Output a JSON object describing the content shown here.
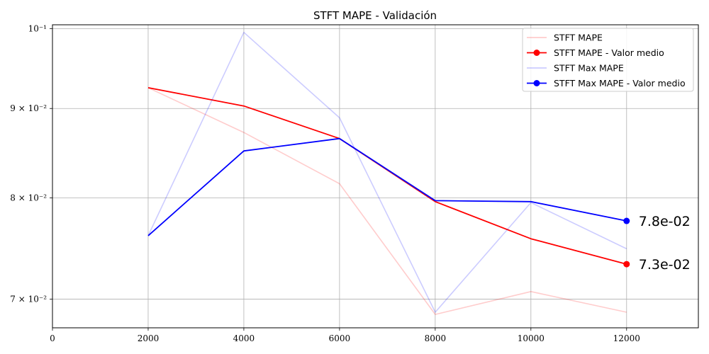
{
  "chart_data": {
    "type": "line",
    "title": "STFT MAPE - Validación",
    "xlabel": "",
    "ylabel": "",
    "x_scale": "linear",
    "y_scale": "log",
    "xlim": [
      0,
      13500
    ],
    "ylim": [
      0.0674,
      0.1005
    ],
    "x_ticks": [
      0,
      2000,
      4000,
      6000,
      8000,
      10000,
      12000
    ],
    "x_tick_labels": [
      "0",
      "2000",
      "4000",
      "6000",
      "8000",
      "10000",
      "12000"
    ],
    "y_ticks": [
      0.07,
      0.08,
      0.09,
      0.1
    ],
    "y_tick_labels": [
      "7 × 10⁻²",
      "8 × 10⁻²",
      "9 × 10⁻²",
      "10⁻¹"
    ],
    "grid": true,
    "legend_position": "upper right",
    "x": [
      2000,
      4000,
      6000,
      8000,
      10000,
      12000
    ],
    "series": [
      {
        "name": "STFT MAPE",
        "values": [
          0.0925,
          0.0872,
          0.0815,
          0.0686,
          0.0707,
          0.0688
        ],
        "color": "#ff0000",
        "opacity": 0.2,
        "marker": false
      },
      {
        "name": "STFT MAPE - Valor medio",
        "values": [
          0.0925,
          0.0903,
          0.0865,
          0.0796,
          0.0758,
          0.0733
        ],
        "color": "#ff0000",
        "opacity": 1,
        "marker": true
      },
      {
        "name": "STFT Max MAPE",
        "values": [
          0.0761,
          0.0995,
          0.0889,
          0.0688,
          0.0795,
          0.0748
        ],
        "color": "#0000ff",
        "opacity": 0.2,
        "marker": false
      },
      {
        "name": "STFT Max MAPE - Valor medio",
        "values": [
          0.0761,
          0.0851,
          0.0865,
          0.0797,
          0.0796,
          0.0776
        ],
        "color": "#0000ff",
        "opacity": 1,
        "marker": true
      }
    ],
    "end_annotations": [
      {
        "series": "STFT Max MAPE - Valor medio",
        "x": 12000,
        "value": 0.0776,
        "text": "7.8e-02",
        "color": "#0000ff"
      },
      {
        "series": "STFT MAPE - Valor medio",
        "x": 12000,
        "value": 0.0733,
        "text": "7.3e-02",
        "color": "#ff0000"
      }
    ]
  }
}
